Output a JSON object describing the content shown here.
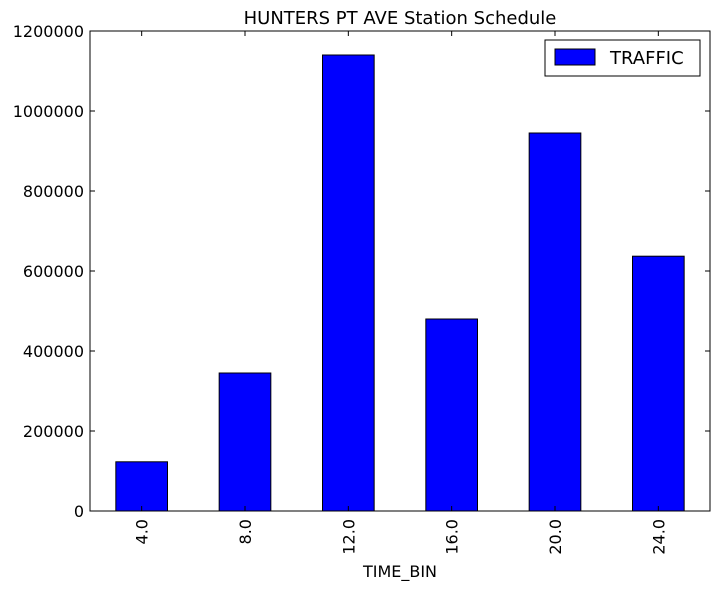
{
  "chart_data": {
    "type": "bar",
    "title": "HUNTERS PT AVE Station Schedule",
    "xlabel": "TIME_BIN",
    "ylabel": "",
    "categories": [
      "4.0",
      "8.0",
      "12.0",
      "16.0",
      "20.0",
      "24.0"
    ],
    "series": [
      {
        "name": "TRAFFIC",
        "color": "#0000ff",
        "values": [
          123000,
          345000,
          1140000,
          480000,
          945000,
          637000
        ]
      }
    ],
    "ylim": [
      0,
      1200000
    ],
    "yticks": [
      0,
      200000,
      400000,
      600000,
      800000,
      1000000,
      1200000
    ],
    "ytick_labels": [
      "0",
      "200000",
      "400000",
      "600000",
      "800000",
      "1000000",
      "1200000"
    ],
    "legend_position": "top-right",
    "grid": false
  }
}
